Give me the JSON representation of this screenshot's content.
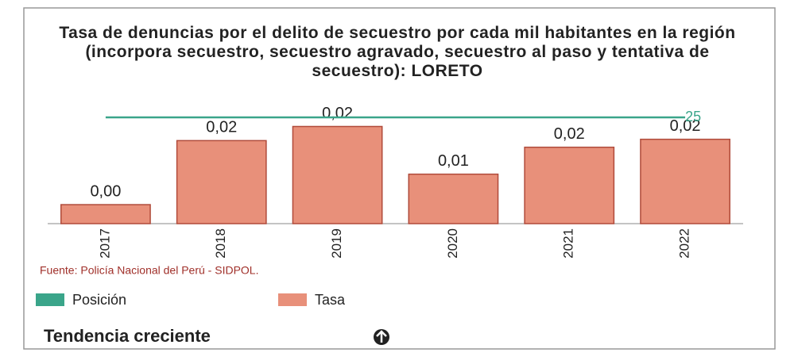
{
  "chart_data": {
    "type": "bar_line",
    "title": "Tasa de denuncias por el delito de secuestro por cada mil habitantes en la región (incorpora secuestro, secuestro agravado, secuestro al paso y tentativa de secuestro): LORETO",
    "categories": [
      "2017",
      "2018",
      "2019",
      "2020",
      "2021",
      "2022"
    ],
    "series": [
      {
        "name": "Posición",
        "color": "#3aa58a",
        "axis": "y2",
        "values": [
          25,
          25,
          25,
          25,
          25,
          25
        ],
        "value_labels": [
          null,
          null,
          null,
          null,
          null,
          "25"
        ]
      },
      {
        "name": "Tasa",
        "color": "#e8907a",
        "values": [
          0.0043,
          0.0188,
          0.022,
          0.0112,
          0.0173,
          0.0191
        ],
        "value_labels": [
          "0,00",
          "0,02",
          "0,02",
          "0,01",
          "0,02",
          "0,02"
        ]
      }
    ],
    "ylim": [
      0,
      0.0255
    ],
    "y2lim": [
      0,
      26.5
    ],
    "source": "Fuente: Policía Nacional del Perú - SIDPOL.",
    "annotation": "Tendencia creciente"
  }
}
